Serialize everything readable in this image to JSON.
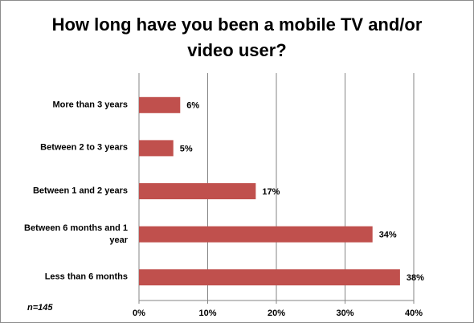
{
  "chart_data": {
    "type": "hbar",
    "title": "How long have you been a mobile TV and/or video user?",
    "categories": [
      "More than 3 years",
      "Between 2 to 3 years",
      "Between 1 and 2 years",
      "Between 6 months and 1 year",
      "Less than 6 months"
    ],
    "values": [
      6,
      5,
      17,
      34,
      38
    ],
    "value_labels": [
      "6%",
      "5%",
      "17%",
      "34%",
      "38%"
    ],
    "color": "#c0504d",
    "xlim": [
      0,
      40
    ],
    "xticks": [
      {
        "value": 0,
        "label": "0%"
      },
      {
        "value": 10,
        "label": "10%"
      },
      {
        "value": 20,
        "label": "20%"
      },
      {
        "value": 30,
        "label": "30%"
      },
      {
        "value": 40,
        "label": "40%"
      }
    ],
    "grid": true,
    "note": "n=145"
  }
}
